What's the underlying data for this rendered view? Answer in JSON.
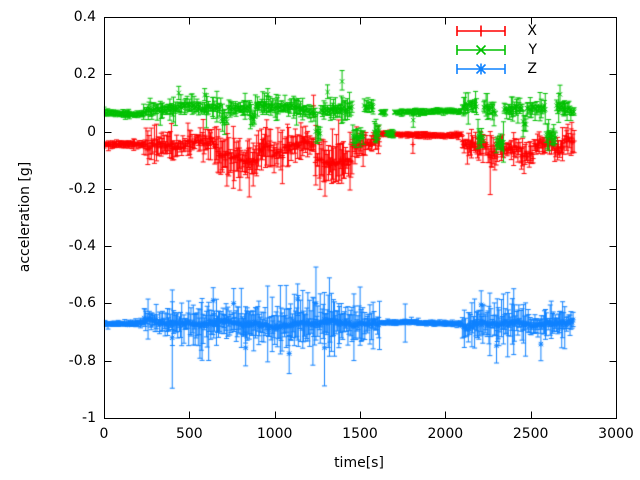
{
  "chart_data": {
    "type": "errorbars",
    "title": "",
    "xlabel": "time[s]",
    "ylabel": "acceleration [g]",
    "xlim": [
      0,
      3000
    ],
    "ylim": [
      -1,
      0.4
    ],
    "x_ticks": [
      0,
      500,
      1000,
      1500,
      2000,
      2500,
      3000
    ],
    "x_tick_labels": [
      "0",
      "500",
      "1000",
      "1500",
      "2000",
      "2500",
      "3000"
    ],
    "y_ticks": [
      0.4,
      0.2,
      0,
      -0.2,
      -0.4,
      -0.6,
      -0.8,
      -1
    ],
    "y_tick_labels": [
      "0.4",
      "0.2",
      "0",
      "-0.2",
      "-0.4",
      "-0.6",
      "-0.8",
      "-1"
    ],
    "grid": false,
    "legend_position": "top-right-inside",
    "background_color": "#ffffff",
    "axis_color": "#000000",
    "text_color": "#000000",
    "time_start": 0,
    "time_end": 2755,
    "sample_step_s": 6,
    "series": [
      {
        "name": "X",
        "color": "#ff0000",
        "marker": "plus",
        "segments": [
          {
            "t0": 0,
            "t1": 232,
            "mean": -0.046,
            "amp": 0.004,
            "err": 0.01,
            "errj": 0.005
          },
          {
            "t0": 232,
            "t1": 1615,
            "mean": -0.048,
            "amp": 0.016,
            "err": 0.028,
            "errj": 0.03
          },
          {
            "t0": 1615,
            "t1": 2095,
            "mean": -0.012,
            "amp": 0.003,
            "err": 0.01,
            "errj": 0.004
          },
          {
            "t0": 2095,
            "t1": 2755,
            "mean": -0.048,
            "amp": 0.016,
            "err": 0.026,
            "errj": 0.026
          }
        ],
        "mods": [
          {
            "t0": 660,
            "t1": 905,
            "dmean": -0.04,
            "errx": 1.7
          },
          {
            "t0": 985,
            "t1": 1050,
            "dmean": -0.025,
            "errx": 1.3
          },
          {
            "t0": 1235,
            "t1": 1455,
            "dmean": -0.055,
            "errx": 1.8
          },
          {
            "t0": 2245,
            "t1": 2305,
            "dmean": -0.035,
            "errx": 1.5
          },
          {
            "t0": 2440,
            "t1": 2520,
            "dmean": -0.03,
            "errx": 1.4
          },
          {
            "t0": 2640,
            "t1": 2700,
            "dmean": -0.025,
            "errx": 1.3
          }
        ],
        "outliers": [
          {
            "t": 1228,
            "v": 0.09,
            "lo": 0.05,
            "hi": 0.127
          },
          {
            "t": 1810,
            "v": -0.045,
            "lo": -0.076,
            "hi": -0.008
          }
        ]
      },
      {
        "name": "Y",
        "color": "#00c000",
        "marker": "cross",
        "segments": [
          {
            "t0": 0,
            "t1": 232,
            "mean": 0.064,
            "amp": 0.004,
            "err": 0.01,
            "errj": 0.004
          },
          {
            "t0": 232,
            "t1": 1615,
            "mean": 0.082,
            "amp": 0.011,
            "err": 0.02,
            "errj": 0.02
          },
          {
            "t0": 1615,
            "t1": 2095,
            "mean": 0.069,
            "amp": 0.003,
            "err": 0.009,
            "errj": 0.004
          },
          {
            "t0": 2095,
            "t1": 2755,
            "mean": 0.083,
            "amp": 0.013,
            "err": 0.022,
            "errj": 0.022
          }
        ],
        "mods": [
          {
            "t0": 690,
            "t1": 725,
            "dmean": -0.04,
            "errx": 1.1
          },
          {
            "t0": 856,
            "t1": 884,
            "dmean": -0.04,
            "errx": 1.1
          },
          {
            "t0": 1240,
            "t1": 1268,
            "dmean": -0.075,
            "errx": 1.2
          },
          {
            "t0": 1455,
            "t1": 1520,
            "dmean": -0.1,
            "errx": 1.2
          },
          {
            "t0": 1580,
            "t1": 1618,
            "dmean": -0.085,
            "errx": 1.2
          },
          {
            "t0": 1652,
            "t1": 1698,
            "dmean": -0.075,
            "errx": 1.2
          },
          {
            "t0": 2185,
            "t1": 2222,
            "dmean": -0.11,
            "errx": 1.2
          },
          {
            "t0": 2295,
            "t1": 2342,
            "dmean": -0.115,
            "errx": 1.2
          },
          {
            "t0": 2455,
            "t1": 2475,
            "dmean": -0.055,
            "errx": 1.1
          },
          {
            "t0": 2590,
            "t1": 2648,
            "dmean": -0.105,
            "errx": 1.2
          }
        ],
        "outliers": [
          {
            "t": 438,
            "v": 0.135,
            "lo": 0.112,
            "hi": 0.158
          },
          {
            "t": 590,
            "v": 0.128,
            "lo": 0.108,
            "hi": 0.15
          },
          {
            "t": 960,
            "v": 0.13,
            "lo": 0.112,
            "hi": 0.15
          },
          {
            "t": 1310,
            "v": 0.138,
            "lo": 0.115,
            "hi": 0.163
          },
          {
            "t": 1395,
            "v": 0.175,
            "lo": 0.145,
            "hi": 0.213
          },
          {
            "t": 1812,
            "v": 0.04,
            "lo": 0.015,
            "hi": 0.067
          },
          {
            "t": 2672,
            "v": 0.13,
            "lo": 0.1,
            "hi": 0.162
          }
        ]
      },
      {
        "name": "Z",
        "color": "#0f82ff",
        "marker": "star",
        "segments": [
          {
            "t0": 0,
            "t1": 232,
            "mean": -0.672,
            "amp": 0.004,
            "err": 0.008,
            "errj": 0.004
          },
          {
            "t0": 232,
            "t1": 1615,
            "mean": -0.67,
            "amp": 0.01,
            "err": 0.03,
            "errj": 0.032
          },
          {
            "t0": 1615,
            "t1": 2095,
            "mean": -0.668,
            "amp": 0.003,
            "err": 0.008,
            "errj": 0.004
          },
          {
            "t0": 2095,
            "t1": 2755,
            "mean": -0.67,
            "amp": 0.011,
            "err": 0.034,
            "errj": 0.034
          }
        ],
        "mods": [
          {
            "t0": 560,
            "t1": 910,
            "dmean": 0,
            "errx": 1.5
          },
          {
            "t0": 950,
            "t1": 1530,
            "dmean": 0,
            "errx": 1.7
          },
          {
            "t0": 2150,
            "t1": 2450,
            "dmean": 0,
            "errx": 1.25
          }
        ],
        "outliers": [
          {
            "t": 400,
            "v": -0.72,
            "lo": -0.896,
            "hi": -0.553
          },
          {
            "t": 640,
            "v": -0.59,
            "lo": -0.64,
            "hi": -0.545
          },
          {
            "t": 760,
            "v": -0.6,
            "lo": -0.652,
            "hi": -0.548
          },
          {
            "t": 830,
            "v": -0.755,
            "lo": -0.818,
            "hi": -0.7
          },
          {
            "t": 1085,
            "v": -0.775,
            "lo": -0.845,
            "hi": -0.712
          },
          {
            "t": 1135,
            "v": -0.585,
            "lo": -0.642,
            "hi": -0.532
          },
          {
            "t": 1242,
            "v": -0.6,
            "lo": -0.728,
            "hi": -0.473
          },
          {
            "t": 1292,
            "v": -0.755,
            "lo": -0.888,
            "hi": -0.635
          },
          {
            "t": 1765,
            "v": -0.667,
            "lo": -0.735,
            "hi": -0.602
          },
          {
            "t": 2210,
            "v": -0.605,
            "lo": -0.658,
            "hi": -0.556
          },
          {
            "t": 2300,
            "v": -0.748,
            "lo": -0.808,
            "hi": -0.695
          },
          {
            "t": 2560,
            "v": -0.742,
            "lo": -0.8,
            "hi": -0.69
          }
        ]
      }
    ]
  }
}
